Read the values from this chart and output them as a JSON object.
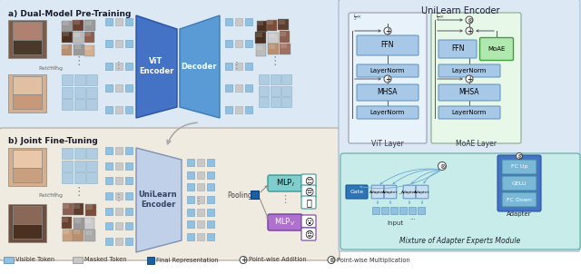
{
  "title": "UniLearn Encoder",
  "section_a": "a) Dual-Model Pre-Training",
  "section_b": "b) Joint Fine-Tuning",
  "colors": {
    "bg_blue": "#dce9f5",
    "bg_beige": "#f0ebe0",
    "bg_right": "#dce9f5",
    "bg_moae_module": "#cceee8",
    "box_blue_light": "#a8c8e8",
    "box_blue_mid": "#7bafd4",
    "box_blue_dark": "#2e75b6",
    "vit_encoder_color": "#4472c4",
    "decoder_color": "#5b9bd5",
    "unilearnenc_color": "#b0c4de",
    "token_blue": "#92c0e0",
    "token_gray": "#c8c8c8",
    "token_dark_blue": "#2e75b6",
    "mlp_i_color": "#7ecfcf",
    "mlp_v_color": "#9b59b6",
    "mlp_i_border": "#5abcbc",
    "mlp_v_border": "#7d3c98",
    "gate_color": "#2e75b6",
    "adapter_color": "#a8c8e8",
    "adapter_detail_bg": "#4472c4",
    "moae_box_color": "#70c070",
    "moae_box_border": "#408040",
    "vit_layer_bg": "#e8f0f8",
    "moae_layer_bg": "#e8f8e8",
    "layernorm_color": "#a8c8e8",
    "ffn_color": "#a8c8e8",
    "mhsa_color": "#a8c8e8",
    "text_dark": "#1a1a2e",
    "line_color": "#555566"
  }
}
